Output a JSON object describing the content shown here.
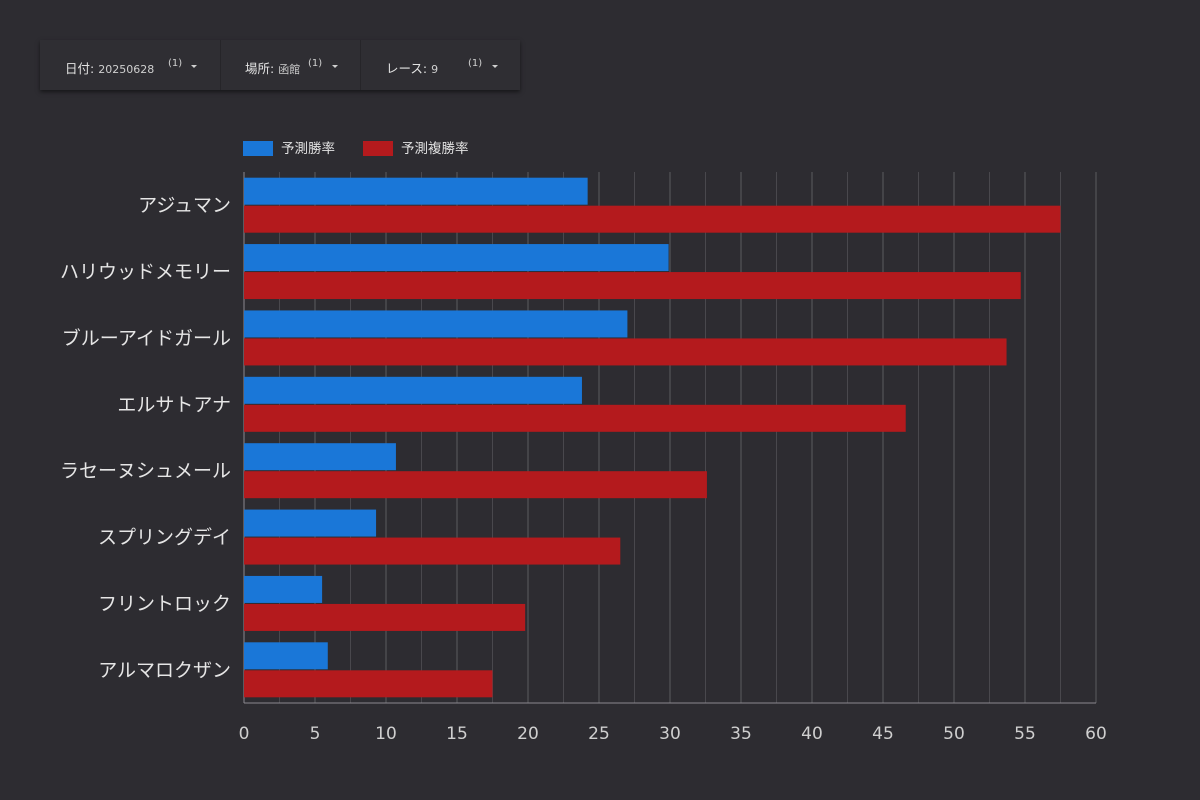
{
  "filters": [
    {
      "label": "日付",
      "value": "20250628",
      "count": "(1)"
    },
    {
      "label": "場所",
      "value": "函館",
      "count": "(1)"
    },
    {
      "label": "レース",
      "value": "9",
      "count": "(1)"
    }
  ],
  "chart_data": {
    "type": "bar",
    "orientation": "horizontal",
    "title": "",
    "xlabel": "",
    "ylabel": "",
    "xlim": [
      0,
      60
    ],
    "xticks": [
      0,
      5,
      10,
      15,
      20,
      25,
      30,
      35,
      40,
      45,
      50,
      55,
      60
    ],
    "grid": true,
    "legend_position": "top-left",
    "categories": [
      "アジュマン",
      "ハリウッドメモリー",
      "ブルーアイドガール",
      "エルサトアナ",
      "ラセーヌシュメール",
      "スプリングデイ",
      "フリントロック",
      "アルマロクザン"
    ],
    "series": [
      {
        "name": "予測勝率",
        "color": "#1a77d8",
        "values": [
          24.2,
          29.9,
          27.0,
          23.8,
          10.7,
          9.3,
          5.5,
          5.9
        ]
      },
      {
        "name": "予測複勝率",
        "color": "#b41a1d",
        "values": [
          57.5,
          54.7,
          53.7,
          46.6,
          32.6,
          26.5,
          19.8,
          17.5
        ]
      }
    ]
  }
}
